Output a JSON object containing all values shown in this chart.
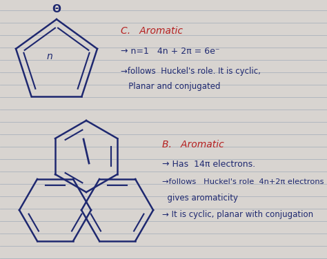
{
  "bg_color": "#d8d4d0",
  "line_color": "#9eaab8",
  "ink_color": "#1e2870",
  "red_color": "#b52020",
  "title_C": "C.   Aromatic",
  "text_C1": "→ n=1   4n + 2π = 6e⁻",
  "text_C2": "→follows  Huckel's role. It is cyclic,",
  "text_C3": "   Planar and conjugated",
  "title_B": "B.   Aromatic",
  "text_B1": "→ Has  14π electrons.",
  "text_B2": "→follows   Huckel's role  4n+2π electrons",
  "text_B3": "  gives aromaticity",
  "text_B4": "→ It is cyclic, planar with conjugation"
}
